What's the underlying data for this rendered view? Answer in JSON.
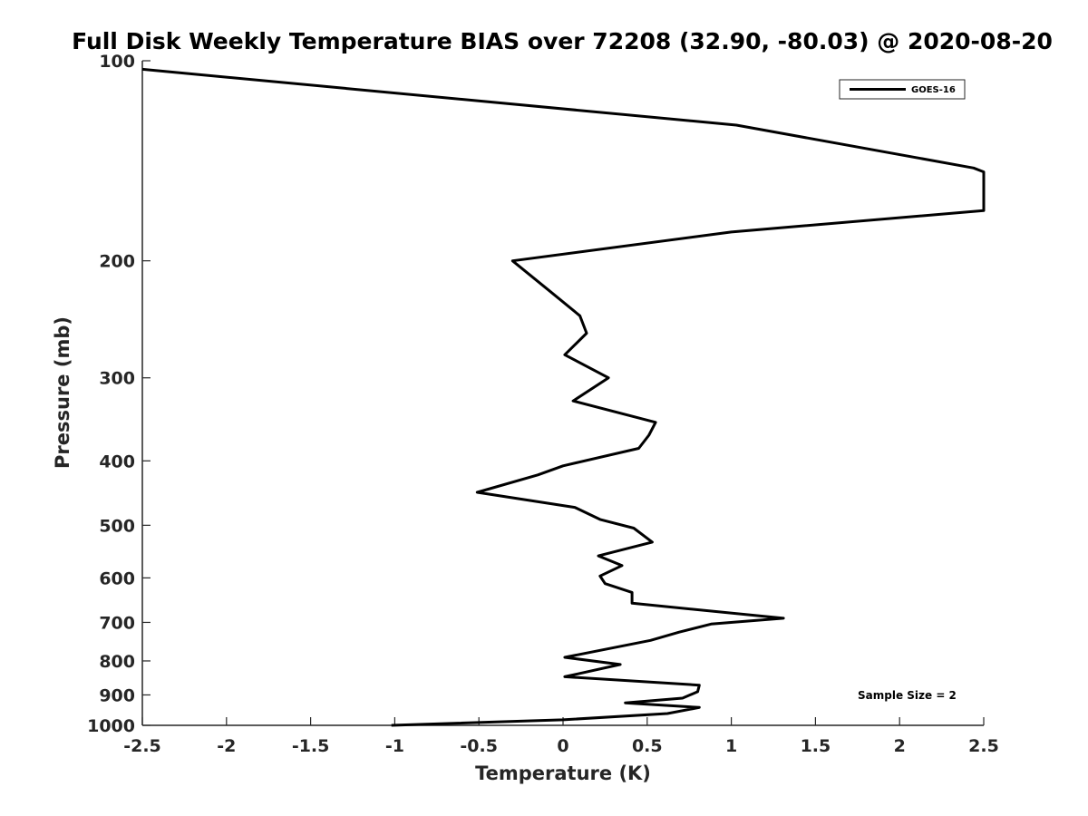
{
  "chart_data": {
    "type": "line",
    "title": "Full Disk Weekly Temperature BIAS over 72208 (32.90, -80.03) @ 2020-08-20",
    "xlabel": "Temperature (K)",
    "ylabel": "Pressure (mb)",
    "xlim": [
      -2.5,
      2.5
    ],
    "ylim": [
      1000,
      100
    ],
    "yscale": "log",
    "y_reversed": true,
    "xticks": [
      "-2.5",
      "-2",
      "-1.5",
      "-1",
      "-0.5",
      "0",
      "0.5",
      "1",
      "1.5",
      "2",
      "2.5"
    ],
    "yticks": [
      "100",
      "200",
      "300",
      "400",
      "500",
      "600",
      "700",
      "800",
      "900",
      "1000"
    ],
    "grid": false,
    "legend_placement": "top-right",
    "annotation": "Sample Size = 2",
    "series": [
      {
        "name": "GOES-16",
        "color": "#000000",
        "points": [
          {
            "x": -2.5,
            "y": 103
          },
          {
            "x": 1.03,
            "y": 125
          },
          {
            "x": 2.44,
            "y": 145
          },
          {
            "x": 2.5,
            "y": 147
          },
          {
            "x": 2.5,
            "y": 168
          },
          {
            "x": 1.0,
            "y": 181
          },
          {
            "x": -0.3,
            "y": 200
          },
          {
            "x": -0.08,
            "y": 222
          },
          {
            "x": 0.1,
            "y": 242
          },
          {
            "x": 0.14,
            "y": 257
          },
          {
            "x": 0.01,
            "y": 277
          },
          {
            "x": 0.27,
            "y": 300
          },
          {
            "x": 0.06,
            "y": 325
          },
          {
            "x": 0.55,
            "y": 350
          },
          {
            "x": 0.51,
            "y": 366
          },
          {
            "x": 0.45,
            "y": 383
          },
          {
            "x": 0.0,
            "y": 407
          },
          {
            "x": -0.15,
            "y": 420
          },
          {
            "x": -0.51,
            "y": 446
          },
          {
            "x": 0.07,
            "y": 470
          },
          {
            "x": 0.22,
            "y": 490
          },
          {
            "x": 0.42,
            "y": 505
          },
          {
            "x": 0.53,
            "y": 530
          },
          {
            "x": 0.21,
            "y": 556
          },
          {
            "x": 0.35,
            "y": 575
          },
          {
            "x": 0.22,
            "y": 596
          },
          {
            "x": 0.25,
            "y": 612
          },
          {
            "x": 0.41,
            "y": 631
          },
          {
            "x": 0.41,
            "y": 655
          },
          {
            "x": 1.31,
            "y": 690
          },
          {
            "x": 0.88,
            "y": 704
          },
          {
            "x": 0.69,
            "y": 724
          },
          {
            "x": 0.52,
            "y": 745
          },
          {
            "x": 0.01,
            "y": 790
          },
          {
            "x": 0.34,
            "y": 810
          },
          {
            "x": 0.01,
            "y": 845
          },
          {
            "x": 0.81,
            "y": 870
          },
          {
            "x": 0.8,
            "y": 890
          },
          {
            "x": 0.71,
            "y": 910
          },
          {
            "x": 0.37,
            "y": 925
          },
          {
            "x": 0.81,
            "y": 940
          },
          {
            "x": 0.62,
            "y": 960
          },
          {
            "x": 0.0,
            "y": 981
          },
          {
            "x": -1.02,
            "y": 1000
          }
        ]
      }
    ]
  }
}
